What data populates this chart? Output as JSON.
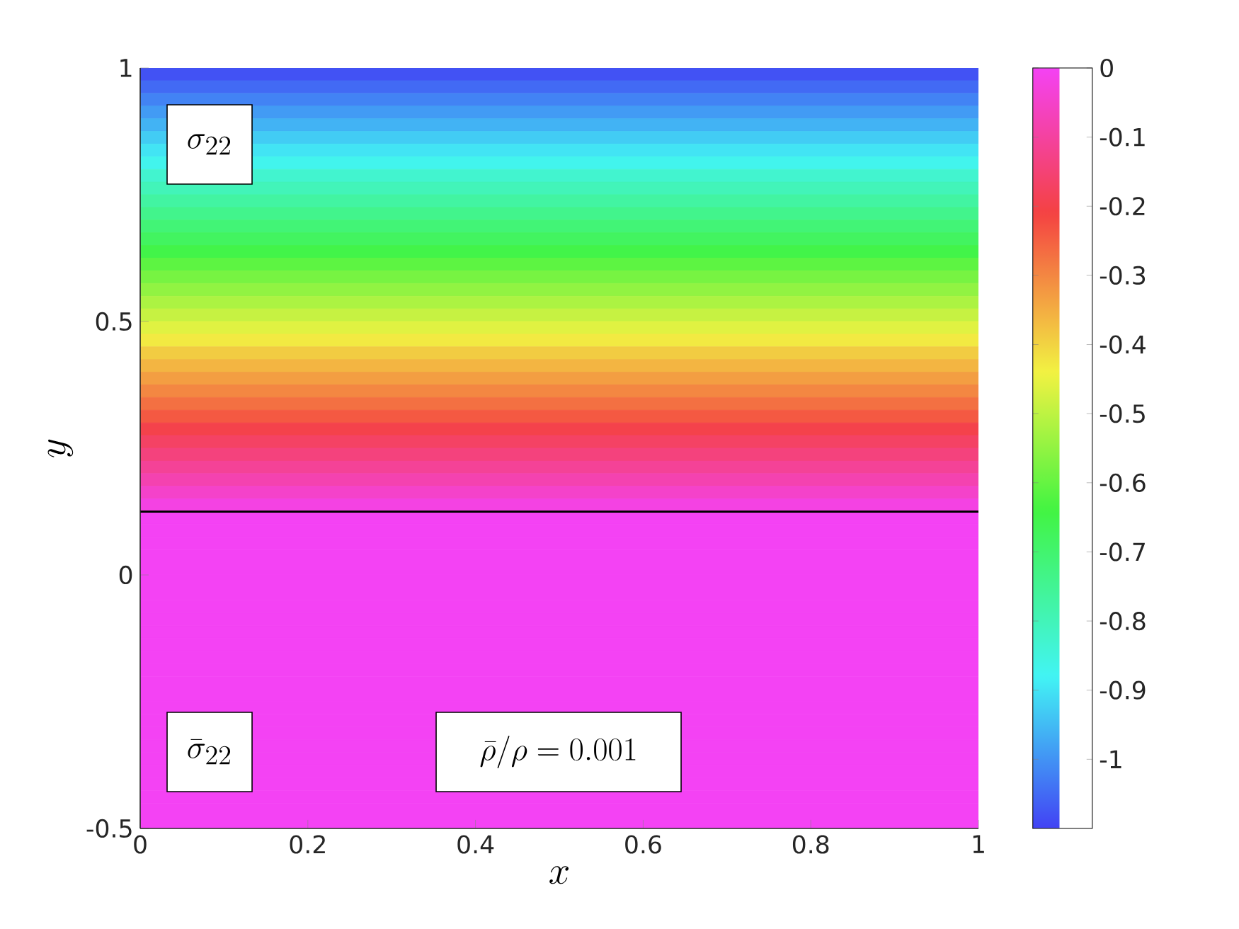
{
  "chart_data": {
    "type": "heatmap",
    "xlabel": "x",
    "ylabel": "y",
    "annotations": [
      "\\sigma_{22}",
      "\\bar{\\sigma}_{22}",
      "\\bar{\\rho}/\\rho = 0.001"
    ],
    "xlim": [
      0,
      1
    ],
    "ylim": [
      -0.5,
      1
    ],
    "xticks": [
      0,
      0.2,
      0.4,
      0.6,
      0.8,
      1
    ],
    "yticks": [
      -0.5,
      0,
      0.5,
      1
    ],
    "y": [
      0.9875,
      0.9625,
      0.9375,
      0.9125,
      0.8875,
      0.8625,
      0.8375,
      0.8125,
      0.7875,
      0.7625,
      0.7375,
      0.7125,
      0.6875,
      0.6625,
      0.6375,
      0.6125,
      0.5875,
      0.5625,
      0.5375,
      0.5125,
      0.4875,
      0.4625,
      0.4375,
      0.4125,
      0.3875,
      0.3625,
      0.3375,
      0.3125,
      0.2875,
      0.2625,
      0.2375,
      0.2125,
      0.1875,
      0.1625,
      0.1375,
      0.1125,
      0.0875,
      0.0625,
      0.0375,
      0.0125,
      -0.0125,
      -0.0375,
      -0.0625,
      -0.0875,
      -0.1125,
      -0.1375,
      -0.1625,
      -0.1875,
      -0.2125,
      -0.2375,
      -0.2625,
      -0.2875,
      -0.3125,
      -0.3375,
      -0.3625,
      -0.3875,
      -0.4125,
      -0.4375,
      -0.4625,
      -0.4875
    ],
    "cells": [
      [
        -1.08
      ],
      [
        -1.05
      ],
      [
        -1.02
      ],
      [
        -0.99
      ],
      [
        -0.96
      ],
      [
        -0.93
      ],
      [
        -0.9
      ],
      [
        -0.87
      ],
      [
        -0.83
      ],
      [
        -0.8
      ],
      [
        -0.77
      ],
      [
        -0.74
      ],
      [
        -0.71
      ],
      [
        -0.68
      ],
      [
        -0.65
      ],
      [
        -0.61
      ],
      [
        -0.58
      ],
      [
        -0.55
      ],
      [
        -0.52
      ],
      [
        -0.49
      ],
      [
        -0.46
      ],
      [
        -0.43
      ],
      [
        -0.39
      ],
      [
        -0.36
      ],
      [
        -0.33
      ],
      [
        -0.3
      ],
      [
        -0.27
      ],
      [
        -0.24
      ],
      [
        -0.2
      ],
      [
        -0.17
      ],
      [
        -0.14
      ],
      [
        -0.11
      ],
      [
        -0.08
      ],
      [
        -0.05
      ],
      [
        -0.02
      ],
      [
        0
      ],
      [
        0
      ],
      [
        0
      ],
      [
        0
      ],
      [
        0
      ],
      [
        0
      ],
      [
        0
      ],
      [
        0
      ],
      [
        0
      ],
      [
        0
      ],
      [
        0
      ],
      [
        0
      ],
      [
        0
      ],
      [
        0
      ],
      [
        0
      ],
      [
        0
      ],
      [
        0
      ],
      [
        0
      ],
      [
        0
      ],
      [
        0
      ],
      [
        0
      ],
      [
        0
      ],
      [
        0
      ],
      [
        0
      ],
      [
        0
      ]
    ],
    "clim": [
      -1.1,
      0
    ],
    "cticks": [
      -1,
      -0.9,
      -0.8,
      -0.7,
      -0.6,
      -0.5,
      -0.4,
      -0.3,
      -0.2,
      -0.1,
      0
    ],
    "ref_lines": [
      {
        "axis": "y",
        "value": 0.125,
        "color": "#000000"
      }
    ]
  }
}
